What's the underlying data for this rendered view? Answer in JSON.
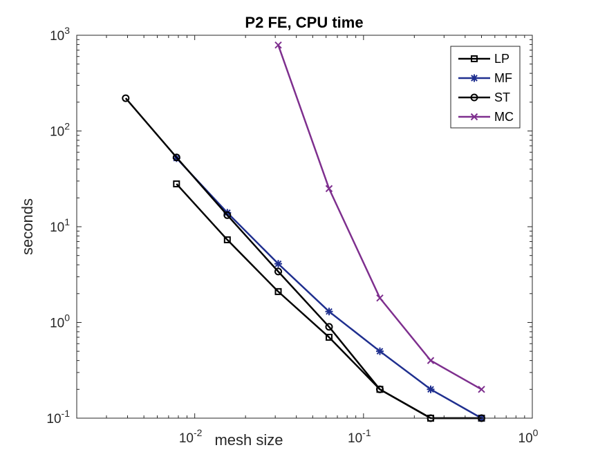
{
  "chart_data": {
    "type": "line",
    "title": "P2 FE, CPU time",
    "xlabel": "mesh size",
    "ylabel": "seconds",
    "xscale": "log",
    "yscale": "log",
    "xlim": [
      0.002,
      1
    ],
    "ylim": [
      0.1,
      1000
    ],
    "xticks": [
      {
        "value": 0.01,
        "base": "10",
        "exp": "-2"
      },
      {
        "value": 0.1,
        "base": "10",
        "exp": "-1"
      },
      {
        "value": 1,
        "base": "10",
        "exp": "0"
      }
    ],
    "yticks": [
      {
        "value": 0.1,
        "base": "10",
        "exp": "-1"
      },
      {
        "value": 1,
        "base": "10",
        "exp": "0"
      },
      {
        "value": 10,
        "base": "10",
        "exp": "1"
      },
      {
        "value": 100,
        "base": "10",
        "exp": "2"
      },
      {
        "value": 1000,
        "base": "10",
        "exp": "3"
      }
    ],
    "legend_position": "top-right",
    "series": [
      {
        "name": "LP",
        "color": "#000000",
        "marker": "square",
        "x": [
          0.0078,
          0.0156,
          0.03125,
          0.0625,
          0.125,
          0.25,
          0.5
        ],
        "y": [
          28,
          7.3,
          2.1,
          0.7,
          0.2,
          0.1,
          0.1
        ]
      },
      {
        "name": "MF",
        "color": "#1f2f8f",
        "marker": "asterisk",
        "x": [
          0.0078,
          0.0156,
          0.03125,
          0.0625,
          0.125,
          0.25,
          0.5
        ],
        "y": [
          52,
          14,
          4.1,
          1.3,
          0.5,
          0.2,
          0.1
        ]
      },
      {
        "name": "ST",
        "color": "#000000",
        "marker": "circle",
        "x": [
          0.0039,
          0.0078,
          0.0156,
          0.03125,
          0.0625,
          0.125,
          0.25,
          0.5
        ],
        "y": [
          220,
          53,
          13.2,
          3.4,
          0.9,
          0.2,
          0.1,
          0.1
        ]
      },
      {
        "name": "MC",
        "color": "#7e2f8e",
        "marker": "x",
        "x": [
          0.03125,
          0.0625,
          0.125,
          0.25,
          0.5
        ],
        "y": [
          790,
          25,
          1.8,
          0.4,
          0.2
        ]
      }
    ]
  }
}
